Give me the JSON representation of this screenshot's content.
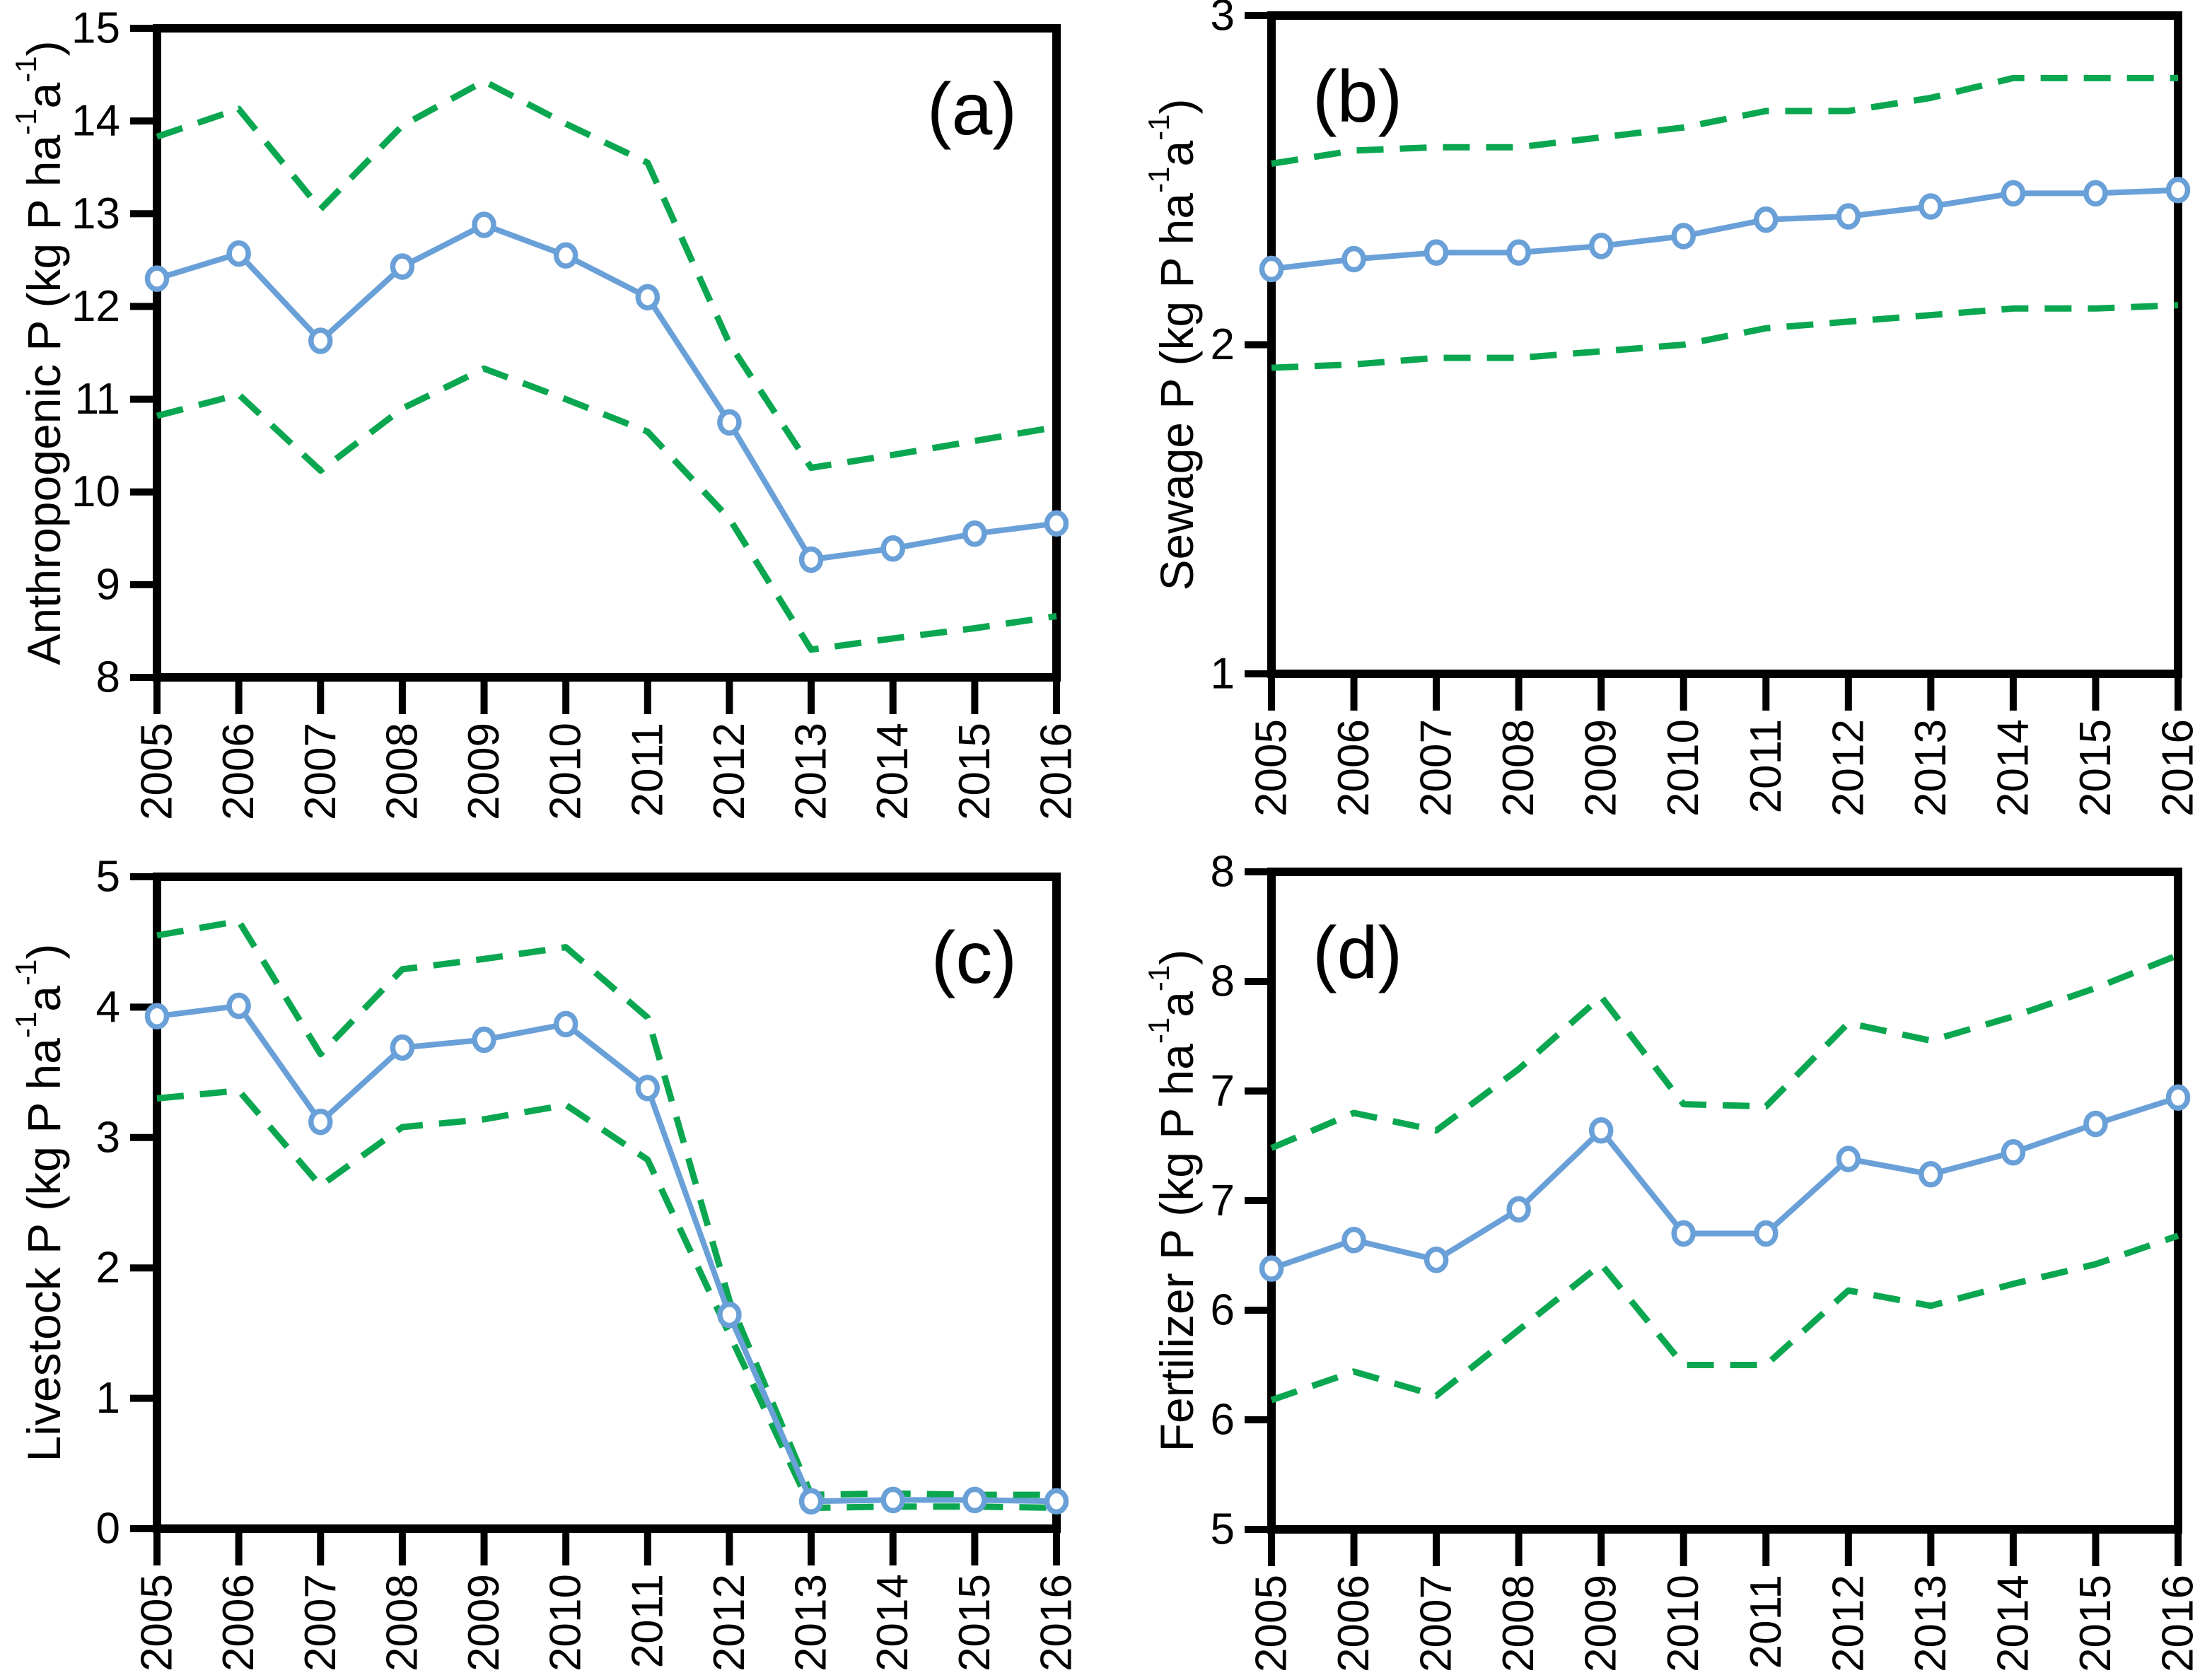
{
  "figure": {
    "background": "#ffffff",
    "text_color": "#000000",
    "axis_color": "#000000",
    "estimate_color": "#6aa0d8",
    "bound_color": "#0ba750",
    "marker_fill": "#ffffff",
    "years": [
      "2005",
      "2006",
      "2007",
      "2008",
      "2009",
      "2010",
      "2011",
      "2012",
      "2013",
      "2014",
      "2015",
      "2016"
    ]
  },
  "chart_data": [
    {
      "id": "a",
      "type": "line",
      "panel_label": "(a)",
      "label_corner": "top-right",
      "ylabel_text": "Anthropogenic P (kg P ha-1a-1)",
      "ylabel_segments": [
        {
          "t": "Anthropogenic P (kg P ha"
        },
        {
          "t": "-1",
          "sup": true
        },
        {
          "t": "a"
        },
        {
          "t": "-1",
          "sup": true
        },
        {
          "t": ")"
        }
      ],
      "ylim": [
        8,
        15
      ],
      "yticks": [
        {
          "v": 8,
          "label": "8"
        },
        {
          "v": 9,
          "label": "9"
        },
        {
          "v": 10,
          "label": "10"
        },
        {
          "v": 11,
          "label": "11"
        },
        {
          "v": 12,
          "label": "12"
        },
        {
          "v": 13,
          "label": "13"
        },
        {
          "v": 14,
          "label": "14"
        },
        {
          "v": 15,
          "label": "15"
        }
      ],
      "x": [
        "2005",
        "2006",
        "2007",
        "2008",
        "2009",
        "2010",
        "2011",
        "2012",
        "2013",
        "2014",
        "2015",
        "2016"
      ],
      "series": [
        {
          "name": "central-estimate",
          "role": "estimate",
          "style": "solid",
          "markers": true,
          "values": [
            12.3,
            12.57,
            11.63,
            12.43,
            12.88,
            12.55,
            12.1,
            10.75,
            9.27,
            9.39,
            9.55,
            9.66
          ]
        },
        {
          "name": "upper-uncertainty-bound",
          "role": "upper",
          "style": "dashed",
          "markers": false,
          "values": [
            13.83,
            14.13,
            13.05,
            13.95,
            14.43,
            13.97,
            13.55,
            11.6,
            10.26,
            10.4,
            10.55,
            10.7
          ]
        },
        {
          "name": "lower-uncertainty-bound",
          "role": "lower",
          "style": "dashed",
          "markers": false,
          "values": [
            10.82,
            11.05,
            10.23,
            10.9,
            11.33,
            11.0,
            10.65,
            9.71,
            8.3,
            8.42,
            8.53,
            8.66
          ]
        }
      ]
    },
    {
      "id": "b",
      "type": "line",
      "panel_label": "(b)",
      "label_corner": "top-left",
      "ylabel_text": "Sewage P (kg P ha-1a-1)",
      "ylabel_segments": [
        {
          "t": "Sewage P (kg P ha"
        },
        {
          "t": "-1",
          "sup": true
        },
        {
          "t": "a"
        },
        {
          "t": "-1",
          "sup": true
        },
        {
          "t": ")"
        }
      ],
      "ylim": [
        1,
        3
      ],
      "yticks": [
        {
          "v": 1,
          "label": "1"
        },
        {
          "v": 2,
          "label": "2"
        },
        {
          "v": 3,
          "label": "3"
        }
      ],
      "x": [
        "2005",
        "2006",
        "2007",
        "2008",
        "2009",
        "2010",
        "2011",
        "2012",
        "2013",
        "2014",
        "2015",
        "2016"
      ],
      "series": [
        {
          "name": "central-estimate",
          "role": "estimate",
          "style": "solid",
          "markers": true,
          "values": [
            2.23,
            2.26,
            2.28,
            2.28,
            2.3,
            2.33,
            2.38,
            2.39,
            2.42,
            2.46,
            2.46,
            2.47
          ]
        },
        {
          "name": "upper-uncertainty-bound",
          "role": "upper",
          "style": "dashed",
          "markers": false,
          "values": [
            2.55,
            2.59,
            2.6,
            2.6,
            2.63,
            2.66,
            2.71,
            2.71,
            2.75,
            2.81,
            2.81,
            2.81
          ]
        },
        {
          "name": "lower-uncertainty-bound",
          "role": "lower",
          "style": "dashed",
          "markers": false,
          "values": [
            1.93,
            1.94,
            1.96,
            1.96,
            1.98,
            2.0,
            2.05,
            2.07,
            2.09,
            2.11,
            2.11,
            2.12
          ]
        }
      ]
    },
    {
      "id": "c",
      "type": "line",
      "panel_label": "(c)",
      "label_corner": "top-right",
      "ylabel_text": "Livestock P (kg P ha-1a-1)",
      "ylabel_segments": [
        {
          "t": "Livestock P (kg P ha"
        },
        {
          "t": "-1",
          "sup": true
        },
        {
          "t": "a"
        },
        {
          "t": "-1",
          "sup": true
        },
        {
          "t": ")"
        }
      ],
      "ylim": [
        0,
        5
      ],
      "yticks": [
        {
          "v": 0,
          "label": "0"
        },
        {
          "v": 1,
          "label": "1"
        },
        {
          "v": 2,
          "label": "2"
        },
        {
          "v": 3,
          "label": "3"
        },
        {
          "v": 4,
          "label": "4"
        },
        {
          "v": 5,
          "label": "5"
        }
      ],
      "x": [
        "2005",
        "2006",
        "2007",
        "2008",
        "2009",
        "2010",
        "2011",
        "2012",
        "2013",
        "2014",
        "2015",
        "2016"
      ],
      "series": [
        {
          "name": "central-estimate",
          "role": "estimate",
          "style": "solid",
          "markers": true,
          "values": [
            3.93,
            4.01,
            3.12,
            3.69,
            3.75,
            3.87,
            3.38,
            1.64,
            0.21,
            0.22,
            0.22,
            0.21
          ]
        },
        {
          "name": "upper-uncertainty-bound",
          "role": "upper",
          "style": "dashed",
          "markers": false,
          "values": [
            4.55,
            4.66,
            3.64,
            4.29,
            4.37,
            4.46,
            3.92,
            1.75,
            0.26,
            0.27,
            0.26,
            0.26
          ]
        },
        {
          "name": "lower-uncertainty-bound",
          "role": "lower",
          "style": "dashed",
          "markers": false,
          "values": [
            3.3,
            3.36,
            2.63,
            3.08,
            3.14,
            3.25,
            2.83,
            1.49,
            0.16,
            0.17,
            0.17,
            0.16
          ]
        }
      ]
    },
    {
      "id": "d",
      "type": "line",
      "panel_label": "(d)",
      "label_corner": "top-left",
      "ylabel_text": "Fertilizer P (kg P ha-1a-1)",
      "ylabel_segments": [
        {
          "t": "Fertilizer P (kg P ha"
        },
        {
          "t": "-1",
          "sup": true
        },
        {
          "t": "a"
        },
        {
          "t": "-1",
          "sup": true
        },
        {
          "t": ")"
        }
      ],
      "ylim": [
        5,
        8
      ],
      "yticks": [
        {
          "v": 5,
          "label": "5"
        },
        {
          "v": 5.5,
          "label": "6"
        },
        {
          "v": 6,
          "label": "6"
        },
        {
          "v": 6.5,
          "label": "7"
        },
        {
          "v": 7,
          "label": "7"
        },
        {
          "v": 7.5,
          "label": "8"
        },
        {
          "v": 8,
          "label": "8"
        }
      ],
      "x": [
        "2005",
        "2006",
        "2007",
        "2008",
        "2009",
        "2010",
        "2011",
        "2012",
        "2013",
        "2014",
        "2015",
        "2016"
      ],
      "series": [
        {
          "name": "central-estimate",
          "role": "estimate",
          "style": "solid",
          "markers": true,
          "values": [
            6.19,
            6.32,
            6.23,
            6.46,
            6.82,
            6.35,
            6.35,
            6.69,
            6.62,
            6.72,
            6.85,
            6.97
          ]
        },
        {
          "name": "upper-uncertainty-bound",
          "role": "upper",
          "style": "dashed",
          "markers": false,
          "values": [
            6.74,
            6.9,
            6.82,
            7.1,
            7.43,
            6.94,
            6.93,
            7.31,
            7.23,
            7.34,
            7.47,
            7.62
          ]
        },
        {
          "name": "lower-uncertainty-bound",
          "role": "lower",
          "style": "dashed",
          "markers": false,
          "values": [
            5.59,
            5.72,
            5.61,
            5.91,
            6.21,
            5.75,
            5.75,
            6.09,
            6.02,
            6.12,
            6.21,
            6.34
          ]
        }
      ]
    }
  ]
}
